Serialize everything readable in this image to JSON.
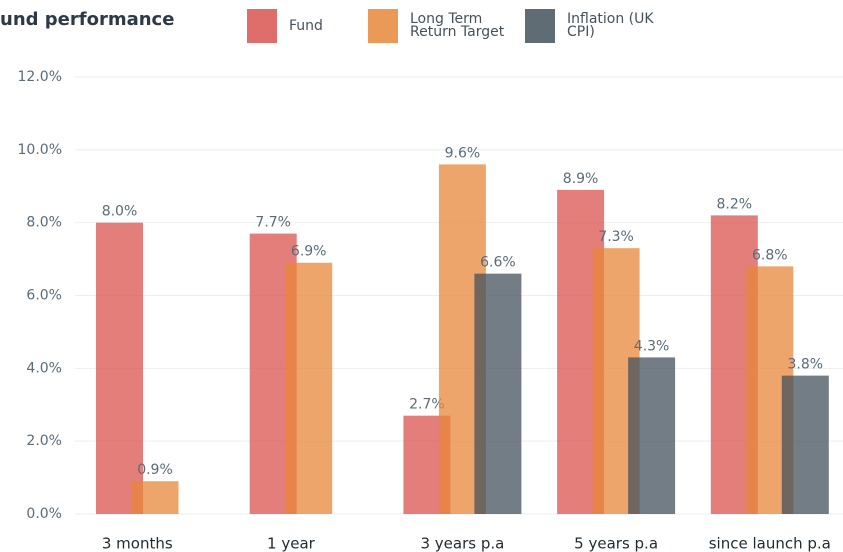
{
  "chart_data": {
    "type": "bar",
    "title": "und performance",
    "categories": [
      "3 months",
      "1 year",
      "3 years p.a",
      "5 years p.a",
      "since launch p.a"
    ],
    "series": [
      {
        "name": "Fund",
        "color": "#d9534f",
        "values": [
          8.0,
          7.7,
          2.7,
          8.9,
          8.2
        ],
        "value_labels": [
          "8.0%",
          "7.7%",
          "2.7%",
          "8.9%",
          "8.2%"
        ]
      },
      {
        "name": "Long Term Return Target",
        "color": "#e8873a",
        "values": [
          0.9,
          6.9,
          9.6,
          7.3,
          6.8
        ],
        "value_labels": [
          "0.9%",
          "6.9%",
          "9.6%",
          "7.3%",
          "6.8%"
        ]
      },
      {
        "name": "Inflation (UK CPI)",
        "color": "#44525c",
        "values": [
          null,
          null,
          6.6,
          4.3,
          3.8
        ],
        "value_labels": [
          null,
          null,
          "6.6%",
          "4.3%",
          "3.8%"
        ]
      }
    ],
    "ylim": [
      0,
      12
    ],
    "yticks": [
      {
        "value": 0,
        "label": "0.0%"
      },
      {
        "value": 2,
        "label": "2.0%"
      },
      {
        "value": 4,
        "label": "4.0%"
      },
      {
        "value": 6,
        "label": "6.0%"
      },
      {
        "value": 8,
        "label": "8.0%"
      },
      {
        "value": 10,
        "label": "10.0%"
      },
      {
        "value": 12,
        "label": "12.0%"
      }
    ],
    "grid": true,
    "legend": "top"
  }
}
